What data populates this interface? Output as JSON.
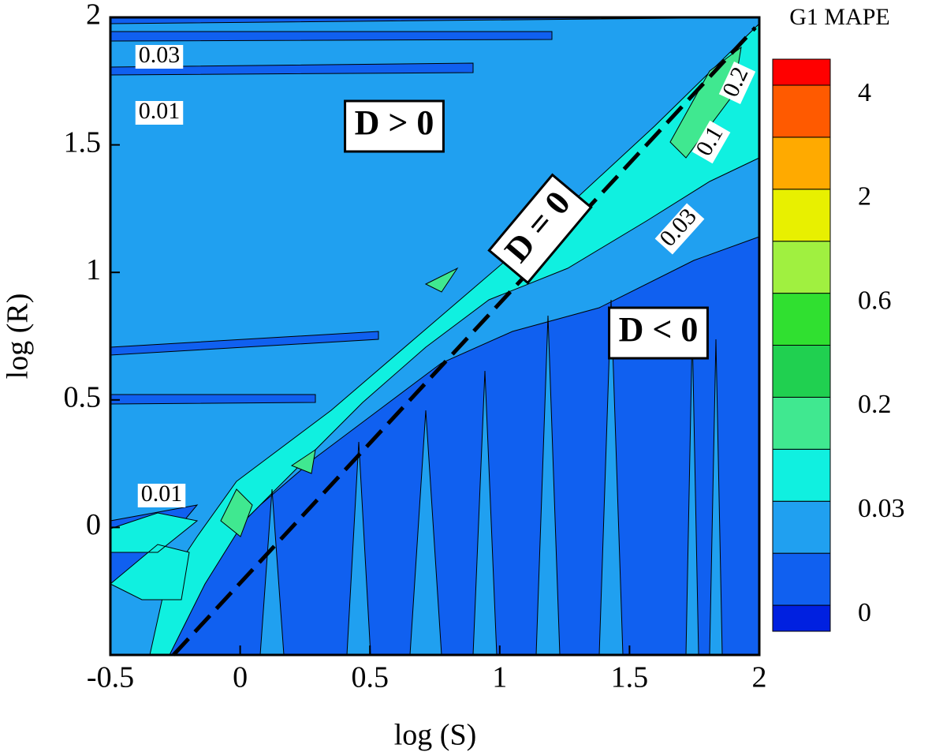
{
  "chart_data": {
    "type": "contour",
    "xlabel": "log (S)",
    "ylabel": "log (R)",
    "xlim": [
      -0.5,
      2
    ],
    "xticks": [
      -0.5,
      0,
      0.5,
      1,
      1.5,
      2
    ],
    "ylim": [
      -0.5,
      2
    ],
    "yticks": [
      0,
      0.5,
      1,
      1.5,
      2
    ],
    "colorbar": {
      "title": "G1 MAPE",
      "colors": [
        "#0020e0",
        "#1060f0",
        "#20a0f0",
        "#10f0e0",
        "#40e890",
        "#20d050",
        "#30e030",
        "#a0f040",
        "#e8f000",
        "#ffaa00",
        "#ff5a00",
        "#ff0000"
      ],
      "ticks": [
        0,
        0.03,
        0.2,
        0.6,
        2,
        4
      ]
    },
    "annotations": [
      "D > 0",
      "D = 0",
      "D < 0"
    ],
    "contour_labels": [
      "0.03",
      "0.01",
      "0.01",
      "0.03",
      "0.1",
      "0.2"
    ]
  }
}
